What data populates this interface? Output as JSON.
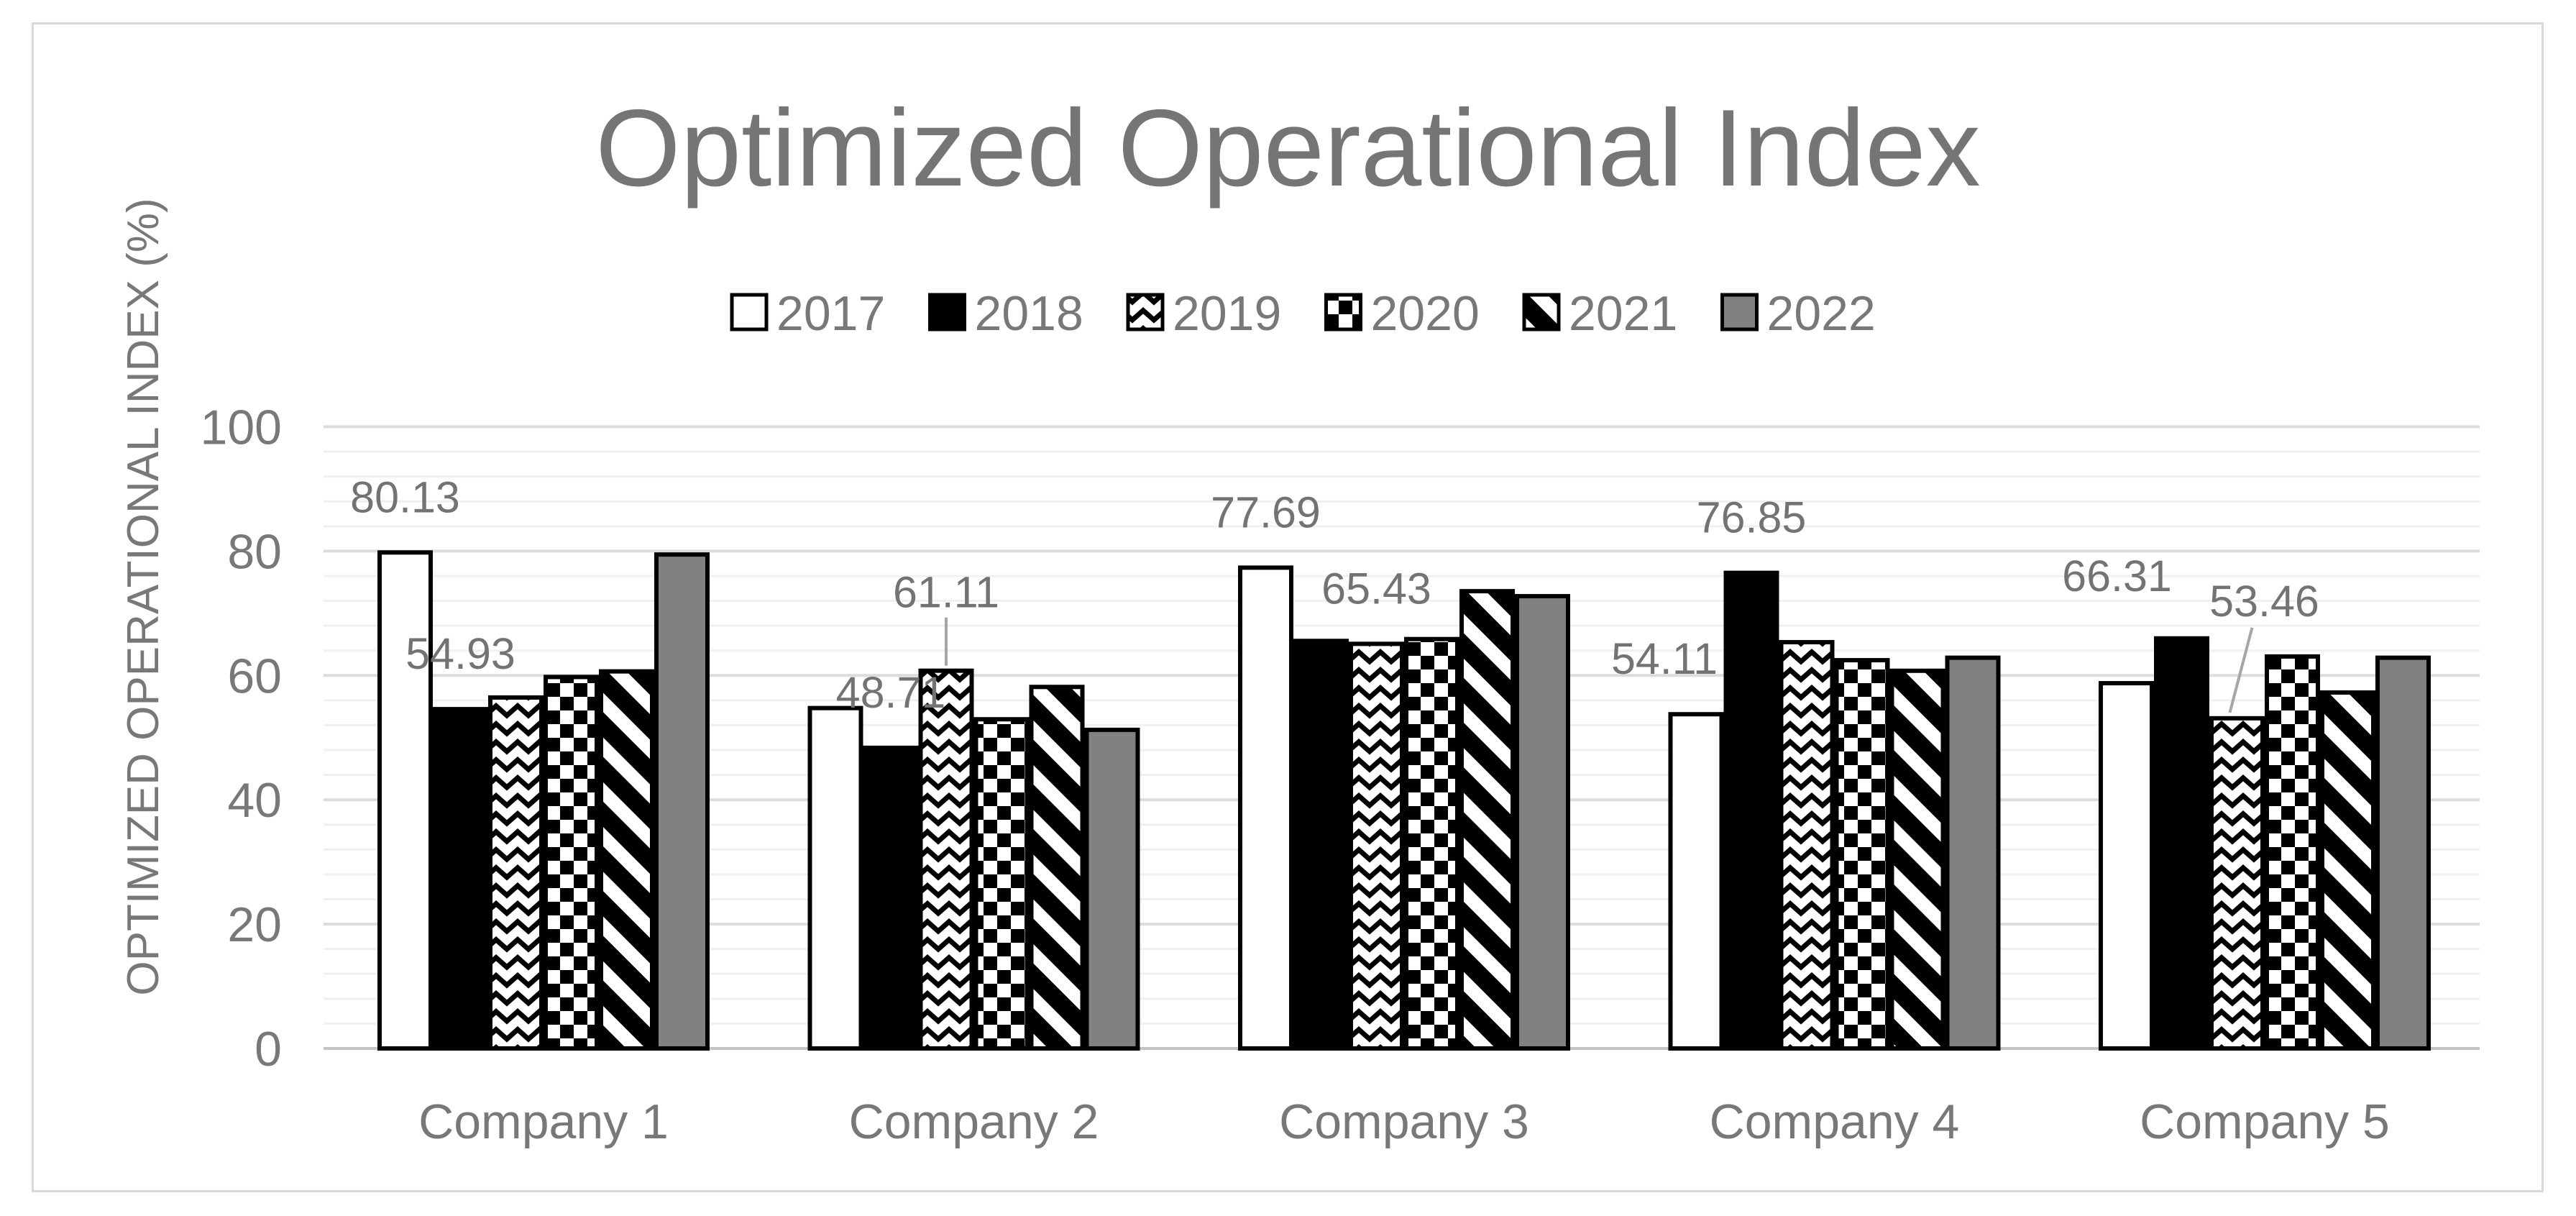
{
  "chart_data": {
    "type": "bar",
    "title": "Optimized Operational Index",
    "ylabel": "OPTIMIZED OPERATIONAL INDEX (%)",
    "xlabel": "",
    "categories": [
      "Company 1",
      "Company 2",
      "Company 3",
      "Company 4",
      "Company 5"
    ],
    "series": [
      {
        "name": "2017",
        "style": "solid-white",
        "values": [
          80.13,
          55.1,
          77.69,
          54.11,
          59.1
        ]
      },
      {
        "name": "2018",
        "style": "solid-black",
        "values": [
          54.93,
          48.71,
          65.9,
          76.85,
          66.31
        ]
      },
      {
        "name": "2019",
        "style": "zigzag",
        "values": [
          56.8,
          61.11,
          65.43,
          65.7,
          53.46
        ]
      },
      {
        "name": "2020",
        "style": "checkerboard",
        "values": [
          60.1,
          53.3,
          66.2,
          62.8,
          63.4
        ]
      },
      {
        "name": "2021",
        "style": "diagonal-stripes",
        "values": [
          61.0,
          58.5,
          73.9,
          61.1,
          57.6
        ]
      },
      {
        "name": "2022",
        "style": "solid-gray",
        "values": [
          79.8,
          51.6,
          73.1,
          63.2,
          63.2
        ]
      }
    ],
    "ylim": [
      0,
      100
    ],
    "yticks": [
      0,
      20,
      40,
      60,
      80,
      100
    ],
    "y_minor_unit": 4,
    "grid": "horizontal",
    "legend_position": "top",
    "data_labels": [
      {
        "category": "Company 1",
        "series": "2017",
        "text": "80.13"
      },
      {
        "category": "Company 1",
        "series": "2018",
        "text": "54.93"
      },
      {
        "category": "Company 2",
        "series": "2018",
        "text": "48.71"
      },
      {
        "category": "Company 2",
        "series": "2019",
        "text": "61.11",
        "leader": "vertical"
      },
      {
        "category": "Company 3",
        "series": "2017",
        "text": "77.69"
      },
      {
        "category": "Company 3",
        "series": "2019",
        "text": "65.43"
      },
      {
        "category": "Company 4",
        "series": "2017",
        "text": "54.11"
      },
      {
        "category": "Company 4",
        "series": "2018",
        "text": "76.85"
      },
      {
        "category": "Company 5",
        "series": "2018",
        "text": "66.31"
      },
      {
        "category": "Company 5",
        "series": "2019",
        "text": "53.46",
        "leader": "diagonal"
      }
    ]
  },
  "colors": {
    "title_text": "#757575",
    "axis_text": "#787878",
    "data_label_text": "#737373",
    "bar_white": "#ffffff",
    "bar_black": "#000000",
    "bar_gray": "#818181",
    "bar_border": "#000000",
    "grid_major": "#dcdcdc",
    "grid_minor": "#f0f0f0",
    "axis_line": "#c4c4c4",
    "frame_border": "#d9d9d9",
    "leader_line": "#a6a6a6"
  }
}
